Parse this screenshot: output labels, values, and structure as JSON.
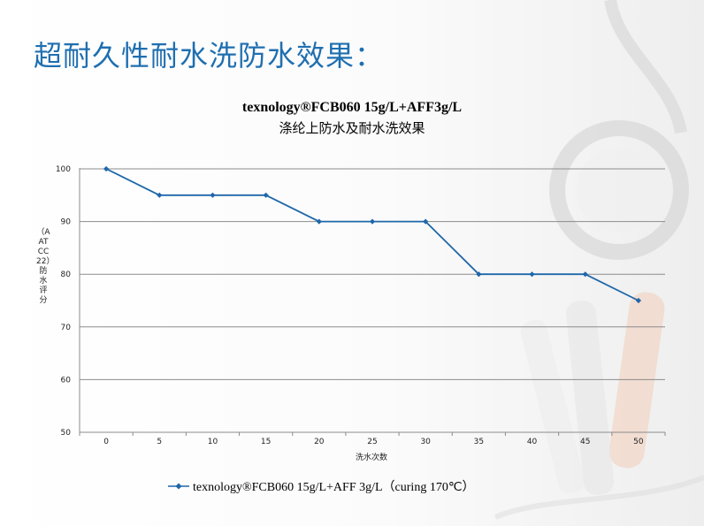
{
  "slide": {
    "title": "超耐久性耐水洗防水效果："
  },
  "colors": {
    "title": "#1f6fb0",
    "series": "#1f67aa",
    "grid": "#8c8c8c"
  },
  "chart_data": {
    "type": "line",
    "title": "texnology®FCB060  15g/L+AFF3g/L",
    "subtitle": "涤纶上防水及耐水洗效果",
    "xlabel": "洗水次数",
    "ylabel": "（AATCC 22）防水评分",
    "x": [
      0,
      5,
      10,
      15,
      20,
      25,
      30,
      35,
      40,
      45,
      50
    ],
    "xticks": [
      "0",
      "5",
      "10",
      "15",
      "20",
      "25",
      "30",
      "35",
      "40",
      "45",
      "50"
    ],
    "yticks": [
      "50",
      "60",
      "70",
      "80",
      "90",
      "100"
    ],
    "ylim": [
      50,
      100
    ],
    "grid": true,
    "legend_position": "bottom",
    "series": [
      {
        "name": "texnology®FCB060  15g/L+AFF 3g/L（curing 170℃）",
        "values": [
          100,
          95,
          95,
          95,
          90,
          90,
          90,
          80,
          80,
          80,
          75
        ]
      }
    ]
  }
}
